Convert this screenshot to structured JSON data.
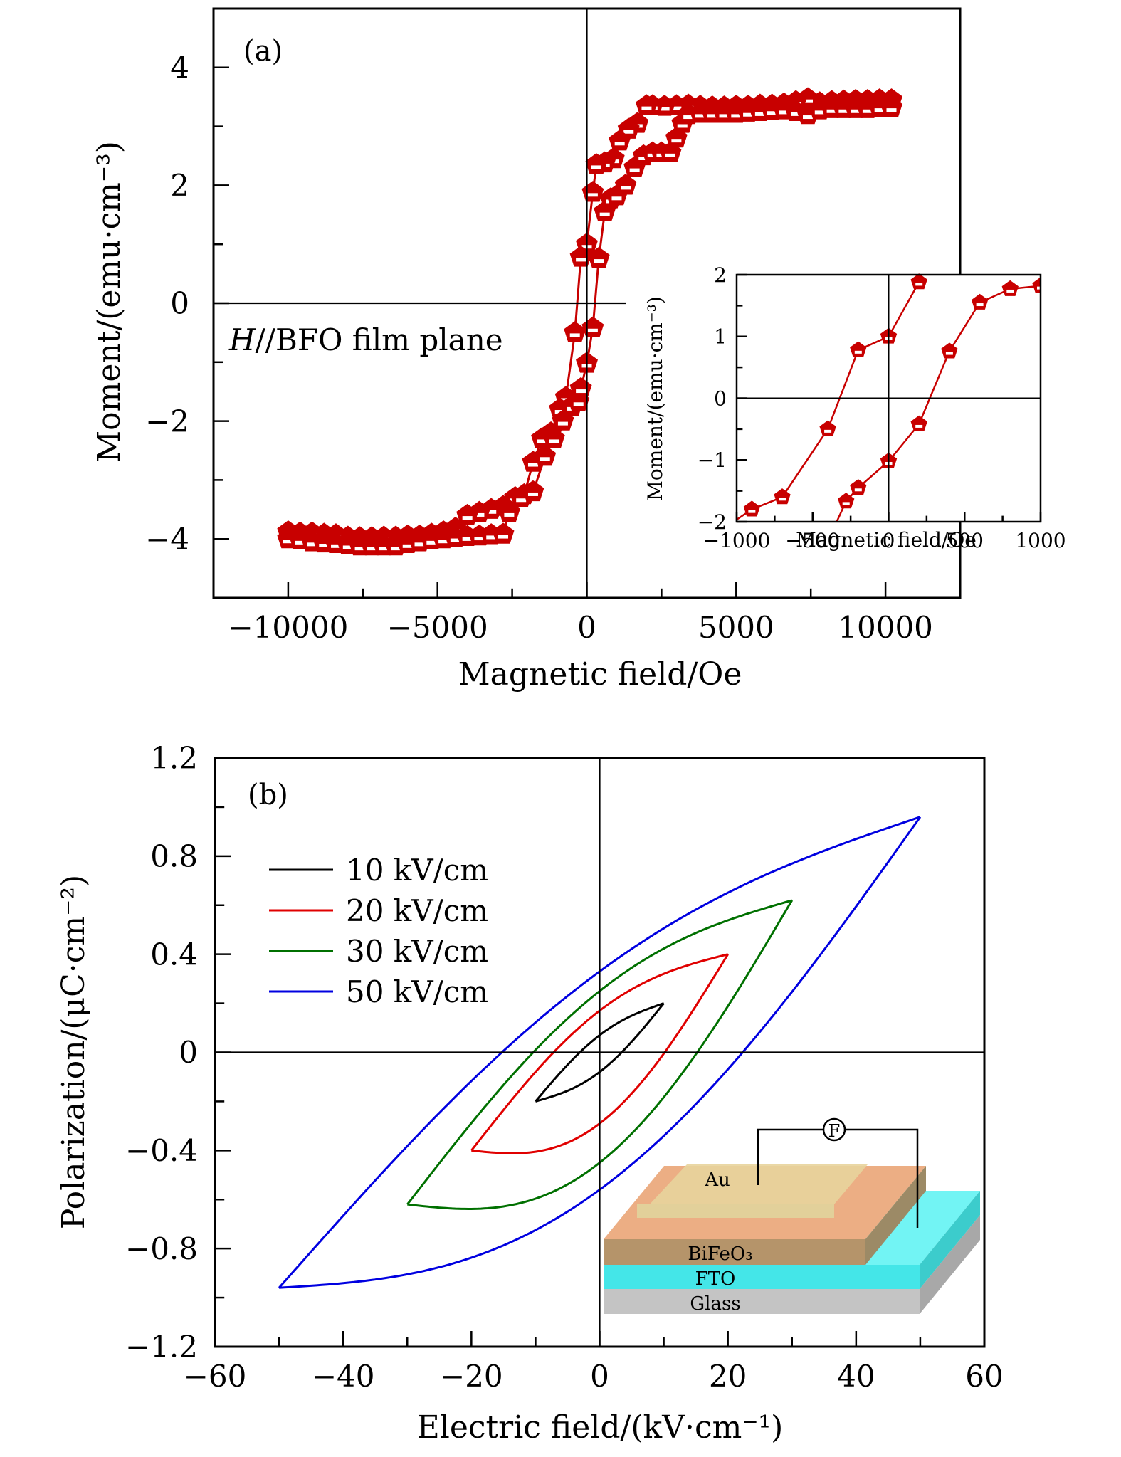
{
  "chart_data": [
    {
      "id": "a",
      "type": "scatter",
      "panel_label": "(a)",
      "title": "",
      "annotation": {
        "italic": "H",
        "text": "//BFO film plane"
      },
      "xlabel": "Magnetic field/Oe",
      "ylabel": "Moment/(emu·cm⁻³)",
      "xlim": [
        -12500,
        12500
      ],
      "ylim": [
        -5,
        5
      ],
      "xticks": [
        -10000,
        -5000,
        0,
        5000,
        10000
      ],
      "xtick_labels": [
        "−10000",
        "−5000",
        "0",
        "5000",
        "10000"
      ],
      "yticks": [
        -4,
        -2,
        0,
        2,
        4
      ],
      "ytick_labels": [
        "−4",
        "−2",
        "0",
        "2",
        "4"
      ],
      "marker": "pentagon",
      "color": "#c80000",
      "series": [
        {
          "name": "descending",
          "x": [
            10200,
            9800,
            9400,
            9000,
            8600,
            8200,
            7800,
            7400,
            7000,
            6600,
            6200,
            5800,
            5400,
            5000,
            4600,
            4200,
            3800,
            3400,
            3000,
            2600,
            2200,
            2000,
            1700,
            1400,
            1100,
            900,
            600,
            320,
            200,
            0,
            -200,
            -400,
            -700,
            -900,
            -1200,
            -1500,
            -1800,
            -2100,
            -2400,
            -2800,
            -3200,
            -3600,
            -4000,
            -4400,
            -4800,
            -5200,
            -5600,
            -6000,
            -6400,
            -6800,
            -7200,
            -7600,
            -8000,
            -8400,
            -8800,
            -9200,
            -9600,
            -10000
          ],
          "y": [
            3.45,
            3.45,
            3.44,
            3.44,
            3.43,
            3.42,
            3.4,
            3.47,
            3.42,
            3.38,
            3.36,
            3.36,
            3.34,
            3.34,
            3.33,
            3.33,
            3.34,
            3.36,
            3.35,
            3.34,
            3.35,
            3.35,
            3.05,
            2.95,
            2.75,
            2.45,
            2.38,
            2.35,
            1.88,
            1.0,
            0.78,
            -0.5,
            -1.6,
            -1.8,
            -2.2,
            -2.3,
            -2.7,
            -3.25,
            -3.3,
            -3.45,
            -3.5,
            -3.55,
            -3.6,
            -3.82,
            -3.88,
            -3.92,
            -3.95,
            -3.95,
            -3.97,
            -3.97,
            -3.98,
            -3.98,
            -3.97,
            -3.93,
            -3.92,
            -3.9,
            -3.9,
            -3.88
          ]
        },
        {
          "name": "ascending",
          "x": [
            -10000,
            -9600,
            -9200,
            -8800,
            -8400,
            -8000,
            -7600,
            -7200,
            -6800,
            -6400,
            -6000,
            -5600,
            -5200,
            -4800,
            -4400,
            -4000,
            -3600,
            -3200,
            -2800,
            -2600,
            -2200,
            -1800,
            -1400,
            -1100,
            -800,
            -500,
            -280,
            -200,
            0,
            200,
            400,
            600,
            800,
            1000,
            1300,
            1600,
            1900,
            2200,
            2500,
            2800,
            3000,
            3200,
            3400,
            3800,
            4200,
            4600,
            5000,
            5400,
            5800,
            6200,
            6600,
            7000,
            7400,
            7800,
            8200,
            8600,
            9000,
            9400,
            9800,
            10200
          ],
          "y": [
            -4.0,
            -4.02,
            -4.05,
            -4.07,
            -4.08,
            -4.1,
            -4.12,
            -4.12,
            -4.12,
            -4.12,
            -4.08,
            -4.05,
            -4.02,
            -4.0,
            -3.98,
            -3.96,
            -3.95,
            -3.93,
            -3.92,
            -3.55,
            -3.3,
            -3.2,
            -2.6,
            -2.3,
            -2.0,
            -1.75,
            -1.67,
            -1.45,
            -1.02,
            -0.42,
            0.76,
            1.55,
            1.77,
            1.82,
            2.0,
            2.3,
            2.5,
            2.55,
            2.55,
            2.55,
            2.8,
            3.05,
            3.2,
            3.22,
            3.22,
            3.22,
            3.22,
            3.24,
            3.25,
            3.27,
            3.28,
            3.25,
            3.2,
            3.28,
            3.3,
            3.3,
            3.3,
            3.3,
            3.32,
            3.32
          ]
        }
      ],
      "inset": {
        "xlabel": "Magnetic field/Oe",
        "ylabel": "Moment/(emu·cm⁻³)",
        "xlim": [
          -1000,
          1000
        ],
        "ylim": [
          -2,
          2
        ],
        "xticks": [
          -1000,
          -500,
          0,
          500,
          1000
        ],
        "xtick_labels": [
          "−1000",
          "−500",
          "0",
          "500",
          "1000"
        ],
        "yticks": [
          -2,
          -1,
          0,
          1,
          2
        ],
        "ytick_labels": [
          "−2",
          "−1",
          "0",
          "1",
          "2"
        ],
        "series": [
          {
            "name": "descending",
            "x": [
              200,
              0,
              -200,
              -400,
              -700,
              -900
            ],
            "y": [
              1.88,
              1.0,
              0.78,
              -0.5,
              -1.6,
              -1.8
            ]
          },
          {
            "name": "ascending",
            "x": [
              -280,
              -200,
              0,
              200,
              400,
              600,
              800,
              1000
            ],
            "y": [
              -1.67,
              -1.45,
              -1.02,
              -0.42,
              0.76,
              1.55,
              1.77,
              1.82
            ]
          }
        ]
      }
    },
    {
      "id": "b",
      "type": "line",
      "panel_label": "(b)",
      "title": "",
      "xlabel": "Electric field/(kV·cm⁻¹)",
      "ylabel": "Polarization/(μC·cm⁻²)",
      "xlim": [
        -60,
        60
      ],
      "ylim": [
        -1.2,
        1.2
      ],
      "xticks": [
        -60,
        -40,
        -20,
        0,
        20,
        40,
        60
      ],
      "xtick_labels": [
        "−60",
        "−40",
        "−20",
        "0",
        "20",
        "40",
        "60"
      ],
      "yticks": [
        -1.2,
        -0.8,
        -0.4,
        0,
        0.4,
        0.8,
        1.2
      ],
      "ytick_labels": [
        "−1.2",
        "−0.8",
        "−0.4",
        "0",
        "0.4",
        "0.8",
        "1.2"
      ],
      "legend": {
        "position": "top-left"
      },
      "series": [
        {
          "name": "10 kV/cm",
          "color": "#000000",
          "Emax": 10,
          "Pmax": 0.2,
          "Pr_upper": 0.07,
          "Pr_lower": -0.04,
          "Pzero_lower": -0.08,
          "Ec_neg": -3,
          "Ec_pos": 1.5
        },
        {
          "name": "20 kV/cm",
          "color": "#e00000",
          "Emax": 20,
          "Pmax": 0.4,
          "Pr_upper": 0.17,
          "Pr_lower": -0.1,
          "Pzero_lower": -0.29,
          "Ec_neg": -7,
          "Ec_pos": 5.5
        },
        {
          "name": "30 kV/cm",
          "color": "#007000",
          "Emax": 30,
          "Pmax": 0.62,
          "Pr_upper": 0.25,
          "Pr_lower": -0.18,
          "Pzero_lower": -0.45,
          "Ec_neg": -11,
          "Ec_pos": 9
        },
        {
          "name": "50 kV/cm",
          "color": "#0000e0",
          "Emax": 50,
          "Pmax": 0.96,
          "Pr_upper": 0.33,
          "Pr_lower": -0.2,
          "Pzero_lower": -0.56,
          "Ec_neg": -16,
          "Ec_pos": 12
        }
      ],
      "schematic": {
        "layers": [
          "Au",
          "BiFeO₃",
          "FTO",
          "Glass"
        ],
        "meter_symbol": "F",
        "colors": {
          "au": "#f5d59a",
          "bfo": "#b5946a",
          "bfo_top": "#ecae84",
          "fto": "#44e6e8",
          "glass": "#c4c4c4"
        }
      }
    }
  ]
}
